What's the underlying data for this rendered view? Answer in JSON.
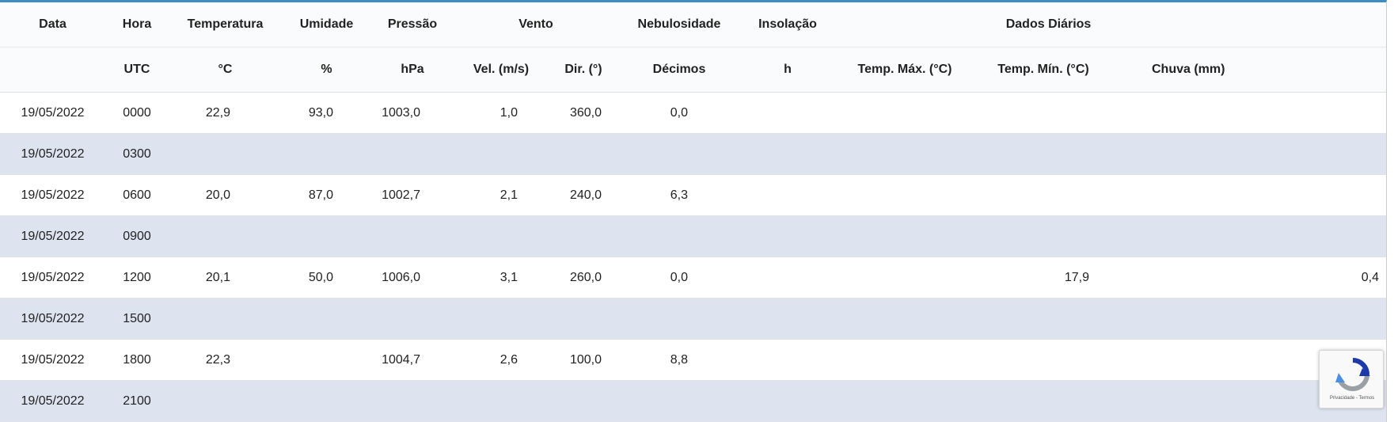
{
  "header_row1": {
    "data": "Data",
    "hora": "Hora",
    "temperatura": "Temperatura",
    "umidade": "Umidade",
    "pressao": "Pressão",
    "vento": "Vento",
    "nebulosidade": "Nebulosidade",
    "insolacao": "Insolação",
    "dados_diarios": "Dados Diários"
  },
  "header_row2": {
    "hora_unit": "UTC",
    "temp_unit": "°C",
    "umid_unit": "%",
    "pres_unit": "hPa",
    "vel": "Vel. (m/s)",
    "dir": "Dir. (°)",
    "neb_unit": "Décimos",
    "ins_unit": "h",
    "tmax": "Temp. Máx. (°C)",
    "tmin": "Temp. Mín. (°C)",
    "chuva": "Chuva (mm)"
  },
  "rows": [
    {
      "data": "19/05/2022",
      "hora": "0000",
      "temp": "22,9",
      "umid": "93,0",
      "pres": "1003,0",
      "vel": "1,0",
      "dir": "360,0",
      "neb": "0,0",
      "ins": "",
      "tmax": "",
      "tmin": "",
      "chuva": ""
    },
    {
      "data": "19/05/2022",
      "hora": "0300",
      "temp": "",
      "umid": "",
      "pres": "",
      "vel": "",
      "dir": "",
      "neb": "",
      "ins": "",
      "tmax": "",
      "tmin": "",
      "chuva": ""
    },
    {
      "data": "19/05/2022",
      "hora": "0600",
      "temp": "20,0",
      "umid": "87,0",
      "pres": "1002,7",
      "vel": "2,1",
      "dir": "240,0",
      "neb": "6,3",
      "ins": "",
      "tmax": "",
      "tmin": "",
      "chuva": ""
    },
    {
      "data": "19/05/2022",
      "hora": "0900",
      "temp": "",
      "umid": "",
      "pres": "",
      "vel": "",
      "dir": "",
      "neb": "",
      "ins": "",
      "tmax": "",
      "tmin": "",
      "chuva": ""
    },
    {
      "data": "19/05/2022",
      "hora": "1200",
      "temp": "20,1",
      "umid": "50,0",
      "pres": "1006,0",
      "vel": "3,1",
      "dir": "260,0",
      "neb": "0,0",
      "ins": "",
      "tmax": "",
      "tmin": "17,9",
      "chuva": "0,4"
    },
    {
      "data": "19/05/2022",
      "hora": "1500",
      "temp": "",
      "umid": "",
      "pres": "",
      "vel": "",
      "dir": "",
      "neb": "",
      "ins": "",
      "tmax": "",
      "tmin": "",
      "chuva": ""
    },
    {
      "data": "19/05/2022",
      "hora": "1800",
      "temp": "22,3",
      "umid": "",
      "pres": "1004,7",
      "vel": "2,6",
      "dir": "100,0",
      "neb": "8,8",
      "ins": "",
      "tmax": "",
      "tmin": "",
      "chuva": ""
    },
    {
      "data": "19/05/2022",
      "hora": "2100",
      "temp": "",
      "umid": "",
      "pres": "",
      "vel": "",
      "dir": "",
      "neb": "",
      "ins": "",
      "tmax": "",
      "tmin": "",
      "chuva": ""
    }
  ],
  "recaptcha": {
    "icon": "recaptcha-icon",
    "legal": "Privacidade - Termos"
  },
  "colors": {
    "accent": "#3c8dc5",
    "stripe": "#dde3ef"
  }
}
